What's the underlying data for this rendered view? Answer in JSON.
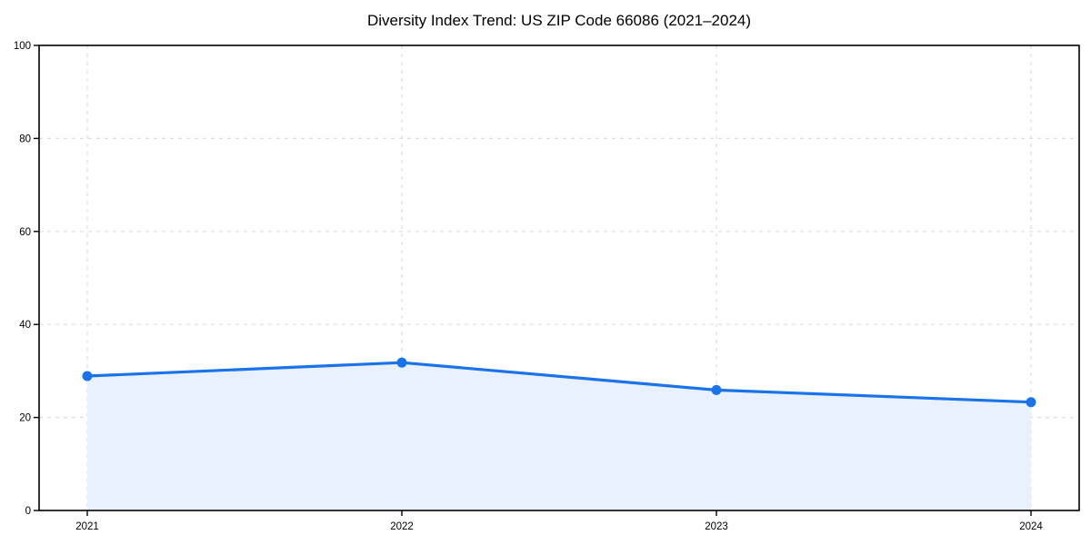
{
  "figure": {
    "background": "#ffffff"
  },
  "chart_data": {
    "type": "area",
    "title": "Diversity Index Trend: US ZIP Code 66086 (2021–2024)",
    "categories": [
      "2021",
      "2022",
      "2023",
      "2024"
    ],
    "series": [
      {
        "name": "Diversity Index",
        "values": [
          28.9,
          31.8,
          25.9,
          23.3
        ]
      }
    ],
    "xlabel": "",
    "ylabel": "",
    "ylim": [
      0,
      100
    ],
    "yticks": [
      0,
      20,
      40,
      60,
      80,
      100
    ],
    "grid": true,
    "grid_style": "dashed",
    "legend": false,
    "marker": "circle",
    "colors": {
      "line": "#1a73e8",
      "marker": "#1a73e8",
      "fill": "#e8f1fd",
      "grid": "#dedede",
      "axis": "#000000",
      "text": "#000000",
      "background": "#ffffff"
    }
  }
}
